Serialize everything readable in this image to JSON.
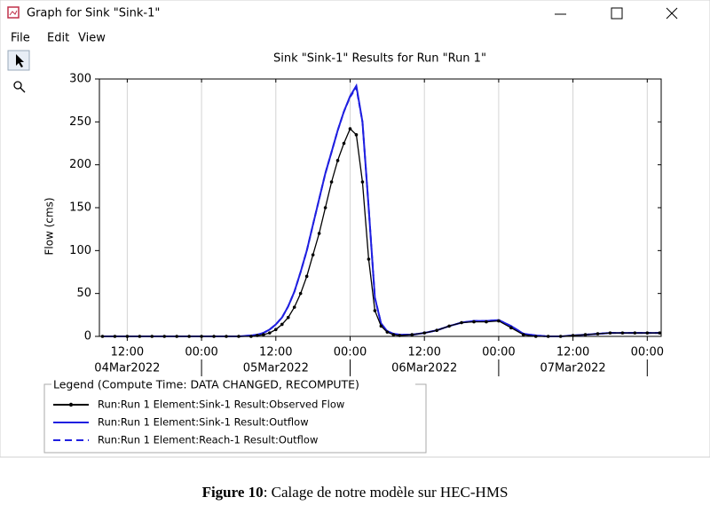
{
  "window": {
    "title": "Graph for Sink \"Sink-1\"",
    "menu": [
      "File",
      "Edit",
      "View"
    ]
  },
  "chart_data": {
    "type": "line",
    "title": "Sink \"Sink-1\" Results for Run \"Run 1\"",
    "y_label": "Flow (cms)",
    "x": [
      "2022-03-04T08:00",
      "2022-03-04T10:00",
      "2022-03-04T12:00",
      "2022-03-04T14:00",
      "2022-03-04T16:00",
      "2022-03-04T18:00",
      "2022-03-04T20:00",
      "2022-03-04T22:00",
      "2022-03-05T00:00",
      "2022-03-05T02:00",
      "2022-03-05T04:00",
      "2022-03-05T06:00",
      "2022-03-05T08:00",
      "2022-03-05T09:00",
      "2022-03-05T10:00",
      "2022-03-05T11:00",
      "2022-03-05T12:00",
      "2022-03-05T13:00",
      "2022-03-05T14:00",
      "2022-03-05T15:00",
      "2022-03-05T16:00",
      "2022-03-05T17:00",
      "2022-03-05T18:00",
      "2022-03-05T19:00",
      "2022-03-05T20:00",
      "2022-03-05T21:00",
      "2022-03-05T22:00",
      "2022-03-05T23:00",
      "2022-03-06T00:00",
      "2022-03-06T01:00",
      "2022-03-06T02:00",
      "2022-03-06T03:00",
      "2022-03-06T04:00",
      "2022-03-06T05:00",
      "2022-03-06T06:00",
      "2022-03-06T07:00",
      "2022-03-06T08:00",
      "2022-03-06T10:00",
      "2022-03-06T12:00",
      "2022-03-06T14:00",
      "2022-03-06T16:00",
      "2022-03-06T18:00",
      "2022-03-06T20:00",
      "2022-03-06T22:00",
      "2022-03-07T00:00",
      "2022-03-07T02:00",
      "2022-03-07T04:00",
      "2022-03-07T06:00",
      "2022-03-07T08:00",
      "2022-03-07T10:00",
      "2022-03-07T12:00",
      "2022-03-07T14:00",
      "2022-03-07T16:00",
      "2022-03-07T18:00",
      "2022-03-07T20:00",
      "2022-03-07T22:00",
      "2022-03-08T00:00",
      "2022-03-08T02:00"
    ],
    "series": [
      {
        "name": "Run:Run 1 Element:Sink-1 Result:Observed Flow",
        "color": "#000000",
        "line_style": "solid",
        "marker": "dot",
        "values": [
          0,
          0,
          0,
          0,
          0,
          0,
          0,
          0,
          0,
          0,
          0,
          0,
          0,
          1,
          2,
          4,
          8,
          14,
          22,
          34,
          50,
          70,
          95,
          120,
          150,
          180,
          205,
          225,
          242,
          235,
          180,
          90,
          30,
          12,
          5,
          2,
          1,
          2,
          4,
          7,
          12,
          16,
          17,
          17,
          18,
          10,
          2,
          0,
          0,
          0,
          1,
          2,
          3,
          4,
          4,
          4,
          4,
          4
        ]
      },
      {
        "name": "Run:Run 1 Element:Sink-1 Result:Outflow",
        "color": "#1f1fe0",
        "line_style": "solid",
        "marker": "none",
        "values": [
          0,
          0,
          0,
          0,
          0,
          0,
          0,
          0,
          0,
          0,
          0,
          0,
          1,
          2,
          4,
          8,
          14,
          22,
          35,
          52,
          75,
          100,
          130,
          160,
          190,
          215,
          240,
          262,
          280,
          292,
          250,
          150,
          45,
          15,
          6,
          3,
          2,
          2,
          4,
          7,
          12,
          16,
          18,
          18,
          19,
          12,
          3,
          1,
          0,
          0,
          1,
          2,
          3,
          4,
          4,
          4,
          4,
          4
        ]
      },
      {
        "name": "Run:Run 1 Element:Reach-1 Result:Outflow",
        "color": "#1f1fe0",
        "line_style": "dashed",
        "marker": "none",
        "values": [
          0,
          0,
          0,
          0,
          0,
          0,
          0,
          0,
          0,
          0,
          0,
          0,
          1,
          2,
          4,
          8,
          14,
          22,
          35,
          52,
          75,
          100,
          130,
          160,
          190,
          215,
          240,
          262,
          279,
          290,
          250,
          150,
          45,
          15,
          6,
          3,
          2,
          2,
          4,
          7,
          12,
          16,
          18,
          18,
          19,
          12,
          3,
          1,
          0,
          0,
          1,
          2,
          3,
          4,
          4,
          4,
          4,
          4
        ]
      }
    ],
    "xlim": [
      "2022-03-04T07:30",
      "2022-03-08T02:15"
    ],
    "xticks": [
      {
        "value": "2022-03-04T12:00",
        "label": "12:00"
      },
      {
        "value": "2022-03-05T00:00",
        "label": "00:00"
      },
      {
        "value": "2022-03-05T12:00",
        "label": "12:00"
      },
      {
        "value": "2022-03-06T00:00",
        "label": "00:00"
      },
      {
        "value": "2022-03-06T12:00",
        "label": "12:00"
      },
      {
        "value": "2022-03-07T00:00",
        "label": "00:00"
      },
      {
        "value": "2022-03-07T12:00",
        "label": "12:00"
      },
      {
        "value": "2022-03-08T00:00",
        "label": "00:00"
      }
    ],
    "x_date_labels": [
      {
        "value": "2022-03-04T12:00",
        "label": "04Mar2022"
      },
      {
        "value": "2022-03-05T12:00",
        "label": "05Mar2022"
      },
      {
        "value": "2022-03-06T12:00",
        "label": "06Mar2022"
      },
      {
        "value": "2022-03-07T12:00",
        "label": "07Mar2022"
      }
    ],
    "ylim": [
      0,
      300
    ],
    "yticks": [
      0,
      50,
      100,
      150,
      200,
      250,
      300
    ],
    "grid": "x",
    "legend_title": "Legend (Compute Time: DATA CHANGED, RECOMPUTE)",
    "legend_position": "bottom-left"
  },
  "caption": {
    "label": "Figure 10",
    "text": ": Calage de notre modèle sur HEC-HMS"
  }
}
